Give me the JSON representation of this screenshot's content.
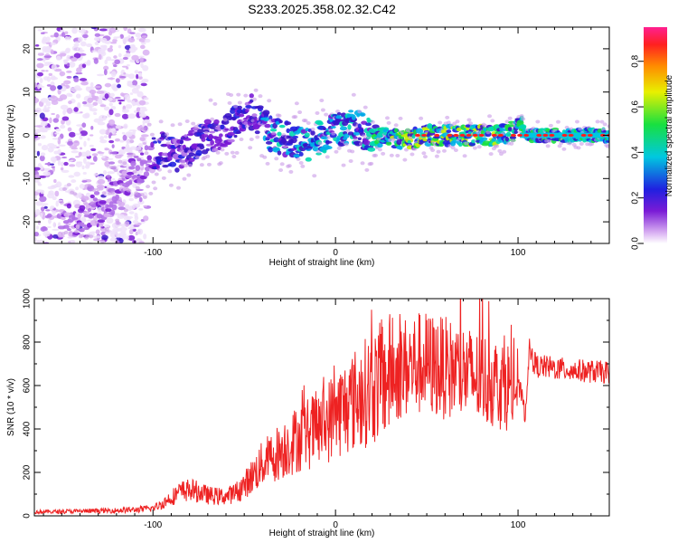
{
  "title": "S233.2025.358.02.32.C42",
  "chart_data": [
    {
      "type": "heatmap",
      "name": "spectrogram",
      "xlabel": "Height of straight line (km)",
      "ylabel": "Frequency (Hz)",
      "xlim": [
        -165,
        150
      ],
      "ylim": [
        -25,
        25
      ],
      "xticks": [
        -100,
        0,
        100
      ],
      "yticks": [
        -20,
        -10,
        0,
        10,
        20
      ],
      "ridge": {
        "x": [
          -165,
          -140,
          -120,
          -105,
          -95,
          -85,
          -75,
          -65,
          -55,
          -48,
          -42,
          -35,
          -25,
          -15,
          -5,
          0,
          10,
          20,
          30,
          40,
          50,
          60,
          70,
          80,
          90,
          98,
          101,
          104,
          110,
          120,
          130,
          140,
          150
        ],
        "y": [
          -22,
          -19,
          -14,
          -6,
          -3,
          -5,
          -1,
          0,
          3,
          6,
          4,
          0,
          -1,
          -2,
          0,
          1,
          2,
          0,
          -1,
          -1,
          0,
          0,
          0,
          0,
          0,
          1,
          4,
          0,
          0,
          0,
          0,
          0,
          0
        ]
      },
      "colorbar": {
        "label": "Normalized spectral amplitude",
        "range": [
          0,
          0.95
        ],
        "ticks": [
          0.0,
          0.2,
          0.4,
          0.6,
          0.8
        ]
      }
    },
    {
      "type": "line",
      "name": "snr",
      "xlabel": "Height of straight line (km)",
      "ylabel": "SNR (10 * v/v)",
      "xlim": [
        -165,
        150
      ],
      "ylim": [
        0,
        1000
      ],
      "xticks": [
        -100,
        0,
        100
      ],
      "yticks": [
        0,
        200,
        400,
        600,
        800,
        1000
      ],
      "series": [
        {
          "name": "SNR",
          "color": "#ee2222",
          "x": [
            -165,
            -150,
            -135,
            -120,
            -110,
            -100,
            -95,
            -90,
            -85,
            -80,
            -75,
            -70,
            -65,
            -60,
            -55,
            -50,
            -45,
            -40,
            -35,
            -30,
            -25,
            -20,
            -15,
            -10,
            -5,
            0,
            5,
            10,
            15,
            20,
            25,
            30,
            35,
            40,
            45,
            50,
            55,
            60,
            65,
            70,
            75,
            80,
            85,
            90,
            95,
            100,
            102,
            104,
            105,
            106,
            110,
            120,
            130,
            140,
            150
          ],
          "y": [
            18,
            20,
            22,
            25,
            28,
            35,
            55,
            85,
            110,
            120,
            110,
            95,
            90,
            90,
            105,
            140,
            190,
            240,
            270,
            300,
            330,
            360,
            380,
            400,
            430,
            470,
            500,
            530,
            560,
            590,
            620,
            650,
            670,
            690,
            700,
            700,
            690,
            680,
            670,
            660,
            640,
            630,
            620,
            610,
            600,
            590,
            560,
            450,
            620,
            760,
            690,
            680,
            670,
            665,
            660
          ]
        }
      ]
    }
  ]
}
